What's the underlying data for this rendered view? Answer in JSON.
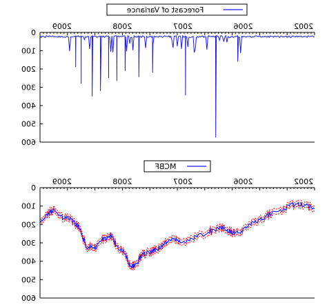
{
  "chart_data": [
    {
      "type": "line",
      "mirrored": true,
      "legend": {
        "label": "Forecast of Variance",
        "placement": "top-center"
      },
      "x_ticks": [
        "2002",
        "2006",
        "2007",
        "2008",
        "2009"
      ],
      "y_ticks": [
        "0",
        "100",
        "200",
        "300",
        "400",
        "500",
        "600"
      ],
      "ylim": [
        0,
        600
      ],
      "grid": false,
      "colors": {
        "series": "#1a1aff"
      },
      "series": [
        {
          "values_description": "daily series, baseline near 20, downward spikes",
          "spikes": [
            {
              "x": 0.36,
              "y": 575
            },
            {
              "x": 0.47,
              "y": 345
            },
            {
              "x": 0.28,
              "y": 160
            },
            {
              "x": 0.59,
              "y": 220
            },
            {
              "x": 0.64,
              "y": 245
            },
            {
              "x": 0.69,
              "y": 210
            },
            {
              "x": 0.72,
              "y": 265
            },
            {
              "x": 0.75,
              "y": 250
            },
            {
              "x": 0.78,
              "y": 320
            },
            {
              "x": 0.81,
              "y": 350
            },
            {
              "x": 0.85,
              "y": 280
            },
            {
              "x": 0.87,
              "y": 190
            }
          ]
        }
      ]
    },
    {
      "type": "line",
      "mirrored": true,
      "legend": {
        "label": "MCBF",
        "placement": "top-center"
      },
      "x_ticks": [
        "2002",
        "2006",
        "2007",
        "2008",
        "2009"
      ],
      "y_ticks": [
        "0",
        "100",
        "200",
        "300",
        "400",
        "500",
        "600"
      ],
      "ylim": [
        0,
        600
      ],
      "grid": false,
      "colors": {
        "main": "#1a1aff",
        "band": "#ff0000"
      },
      "series": [
        {
          "name": "MCBF",
          "points": [
            [
              0.0,
              110
            ],
            [
              0.04,
              95
            ],
            [
              0.08,
              92
            ],
            [
              0.12,
              120
            ],
            [
              0.16,
              140
            ],
            [
              0.2,
              180
            ],
            [
              0.24,
              200
            ],
            [
              0.27,
              240
            ],
            [
              0.3,
              245
            ],
            [
              0.33,
              220
            ],
            [
              0.36,
              225
            ],
            [
              0.4,
              250
            ],
            [
              0.44,
              275
            ],
            [
              0.48,
              305
            ],
            [
              0.51,
              280
            ],
            [
              0.54,
              300
            ],
            [
              0.57,
              330
            ],
            [
              0.6,
              350
            ],
            [
              0.63,
              365
            ],
            [
              0.65,
              420
            ],
            [
              0.67,
              430
            ],
            [
              0.69,
              360
            ],
            [
              0.72,
              320
            ],
            [
              0.74,
              260
            ],
            [
              0.77,
              280
            ],
            [
              0.8,
              330
            ],
            [
              0.83,
              320
            ],
            [
              0.86,
              210
            ],
            [
              0.89,
              170
            ],
            [
              0.92,
              160
            ],
            [
              0.95,
              120
            ],
            [
              0.97,
              140
            ],
            [
              1.0,
              180
            ]
          ]
        }
      ]
    }
  ]
}
